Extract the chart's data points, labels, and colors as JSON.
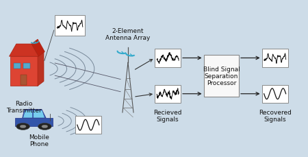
{
  "bg_color": "#cddce8",
  "fig_w": 4.5,
  "fig_h": 2.3,
  "dpi": 100,
  "antenna_label": "2-Element\nAntenna Array",
  "received_label": "Recieved\nSignals",
  "processor_label": "Blind Signal\nSeparation\nProcessor",
  "recovered_label": "Recovered\nSignals",
  "radio_label": "Radio\nTransmitter",
  "mobile_label": "Mobile\nPhone",
  "box_facecolor": "#ffffff",
  "box_edgecolor": "#888888",
  "processor_facecolor": "#f8f8f8",
  "processor_edgecolor": "#888888",
  "arrow_color": "#222222",
  "building_color": "#cc3322",
  "car_color": "#3355aa",
  "text_color": "#111111",
  "label_fontsize": 6.5,
  "wave_color": "#555555",
  "tower_color": "#777777",
  "dish_color": "#33aacc"
}
